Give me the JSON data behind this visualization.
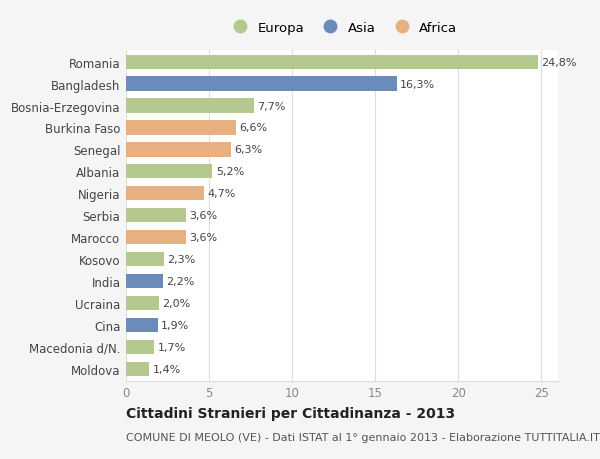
{
  "countries": [
    "Romania",
    "Bangladesh",
    "Bosnia-Erzegovina",
    "Burkina Faso",
    "Senegal",
    "Albania",
    "Nigeria",
    "Serbia",
    "Marocco",
    "Kosovo",
    "India",
    "Ucraina",
    "Cina",
    "Macedonia d/N.",
    "Moldova"
  ],
  "values": [
    24.8,
    16.3,
    7.7,
    6.6,
    6.3,
    5.2,
    4.7,
    3.6,
    3.6,
    2.3,
    2.2,
    2.0,
    1.9,
    1.7,
    1.4
  ],
  "labels": [
    "24,8%",
    "16,3%",
    "7,7%",
    "6,6%",
    "6,3%",
    "5,2%",
    "4,7%",
    "3,6%",
    "3,6%",
    "2,3%",
    "2,2%",
    "2,0%",
    "1,9%",
    "1,7%",
    "1,4%"
  ],
  "continents": [
    "Europa",
    "Asia",
    "Europa",
    "Africa",
    "Africa",
    "Europa",
    "Africa",
    "Europa",
    "Africa",
    "Europa",
    "Asia",
    "Europa",
    "Asia",
    "Europa",
    "Europa"
  ],
  "colors": {
    "Europa": "#b5c98e",
    "Asia": "#6b8cba",
    "Africa": "#e8b080"
  },
  "title": "Cittadini Stranieri per Cittadinanza - 2013",
  "subtitle": "COMUNE DI MEOLO (VE) - Dati ISTAT al 1° gennaio 2013 - Elaborazione TUTTITALIA.IT",
  "xlim": [
    0,
    26
  ],
  "xticks": [
    0,
    5,
    10,
    15,
    20,
    25
  ],
  "background_color": "#f5f5f5",
  "plot_background": "#ffffff",
  "grid_color": "#dddddd",
  "title_fontsize": 10,
  "subtitle_fontsize": 8,
  "label_fontsize": 8,
  "tick_fontsize": 8.5,
  "legend_fontsize": 9.5
}
